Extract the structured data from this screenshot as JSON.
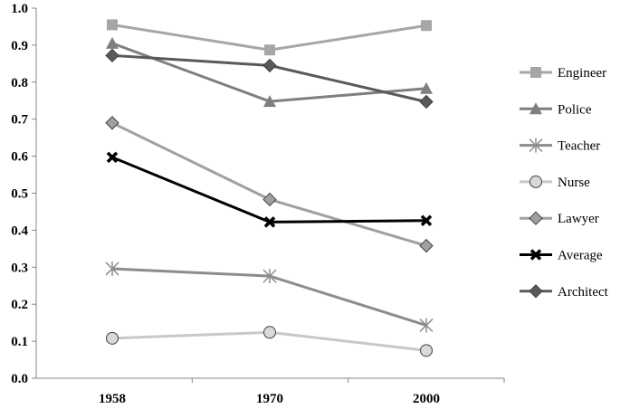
{
  "chart_data": {
    "type": "line",
    "categories": [
      "1958",
      "1970",
      "2000"
    ],
    "ylim": [
      0,
      1.0
    ],
    "yticks": [
      "0.0",
      "0.1",
      "0.2",
      "0.3",
      "0.4",
      "0.5",
      "0.6",
      "0.7",
      "0.8",
      "0.9",
      "1.0"
    ],
    "grid": false,
    "legend_position": "right",
    "series": [
      {
        "name": "Engineer",
        "values": [
          0.955,
          0.887,
          0.953
        ],
        "color": "#a6a6a6",
        "marker": "square"
      },
      {
        "name": "Police",
        "values": [
          0.905,
          0.748,
          0.783
        ],
        "color": "#7f7f7f",
        "marker": "triangle"
      },
      {
        "name": "Teacher",
        "values": [
          0.296,
          0.276,
          0.143
        ],
        "color": "#8c8c8c",
        "marker": "star"
      },
      {
        "name": "Nurse",
        "values": [
          0.108,
          0.124,
          0.075
        ],
        "color": "#c8c8c8",
        "marker": "circle"
      },
      {
        "name": "Lawyer",
        "values": [
          0.69,
          0.483,
          0.358
        ],
        "color": "#a0a0a0",
        "marker": "diamond"
      },
      {
        "name": "Average",
        "values": [
          0.597,
          0.422,
          0.426
        ],
        "color": "#000000",
        "marker": "x"
      },
      {
        "name": "Architect",
        "values": [
          0.872,
          0.845,
          0.747
        ],
        "color": "#595959",
        "marker": "diamond"
      }
    ]
  }
}
